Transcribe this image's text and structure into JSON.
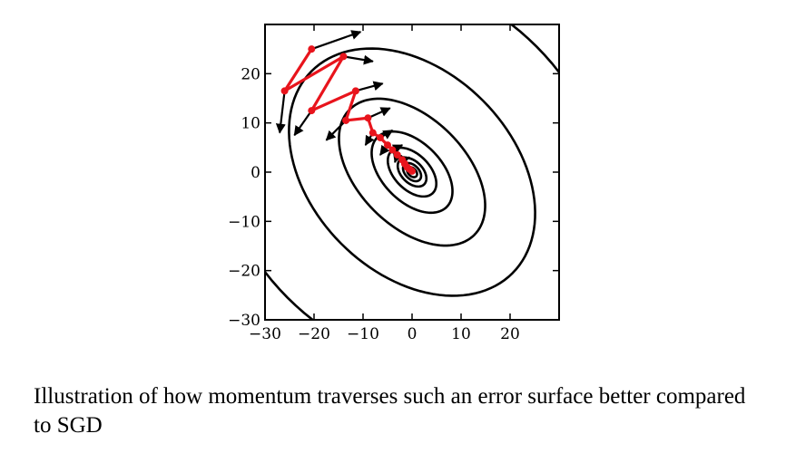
{
  "chart_data": {
    "type": "contour",
    "xlim": [
      -30,
      30
    ],
    "ylim": [
      -30,
      30
    ],
    "x_ticks": [
      -30,
      -20,
      -10,
      0,
      10,
      20
    ],
    "x_tick_labels": [
      "−30",
      "−20",
      "−10",
      "0",
      "10",
      "20"
    ],
    "y_ticks": [
      -30,
      -20,
      -10,
      0,
      10,
      20
    ],
    "y_tick_labels": [
      "−30",
      "−20",
      "−10",
      "0",
      "10",
      "20"
    ],
    "grid": false,
    "contour": {
      "center": [
        0,
        0
      ],
      "axis_angle_deg": -45,
      "semi_axes": [
        [
          1.2,
          0.8
        ],
        [
          2.2,
          1.4
        ],
        [
          3.5,
          2.2
        ],
        [
          6,
          3.6
        ],
        [
          10,
          6
        ],
        [
          18,
          11
        ],
        [
          29,
          20.5
        ],
        [
          44,
          36
        ]
      ]
    },
    "momentum_path": {
      "color": "#e8141c",
      "points": [
        [
          -20.5,
          25
        ],
        [
          -26,
          16.5
        ],
        [
          -14,
          23.5
        ],
        [
          -20.5,
          12.5
        ],
        [
          -11.5,
          16.5
        ],
        [
          -13.5,
          10.5
        ],
        [
          -9,
          11
        ],
        [
          -8,
          8
        ],
        [
          -6.5,
          7
        ],
        [
          -5,
          5.5
        ],
        [
          -4,
          4.5
        ],
        [
          -3,
          3.5
        ],
        [
          -2,
          2.5
        ],
        [
          -1.5,
          1.7
        ],
        [
          -1,
          1
        ],
        [
          -0.5,
          0.6
        ],
        [
          0,
          0.2
        ]
      ]
    },
    "sgd_arrows": [
      {
        "from": [
          -20.5,
          25
        ],
        "to": [
          -10.5,
          28.5
        ]
      },
      {
        "from": [
          -26,
          16.5
        ],
        "to": [
          -27,
          8
        ]
      },
      {
        "from": [
          -14,
          23.5
        ],
        "to": [
          -8,
          22.5
        ]
      },
      {
        "from": [
          -20.5,
          12.5
        ],
        "to": [
          -24,
          7.5
        ]
      },
      {
        "from": [
          -11.5,
          16.5
        ],
        "to": [
          -6,
          18
        ]
      },
      {
        "from": [
          -13.5,
          10.5
        ],
        "to": [
          -17.5,
          6.5
        ]
      },
      {
        "from": [
          -9,
          11
        ],
        "to": [
          -4.5,
          13
        ]
      },
      {
        "from": [
          -8,
          8
        ],
        "to": [
          -9.5,
          5.5
        ]
      },
      {
        "from": [
          -6.5,
          7
        ],
        "to": [
          -4,
          8.5
        ]
      },
      {
        "from": [
          -5,
          5.5
        ],
        "to": [
          -6.5,
          3.5
        ]
      },
      {
        "from": [
          -4,
          4.5
        ],
        "to": [
          -2,
          5.5
        ]
      },
      {
        "from": [
          -3,
          3.5
        ],
        "to": [
          -3.5,
          2
        ]
      },
      {
        "from": [
          -2,
          2.5
        ],
        "to": [
          -0.5,
          3
        ]
      }
    ]
  },
  "caption": "Illustration of how momentum traverses such an error surface better compared to SGD"
}
